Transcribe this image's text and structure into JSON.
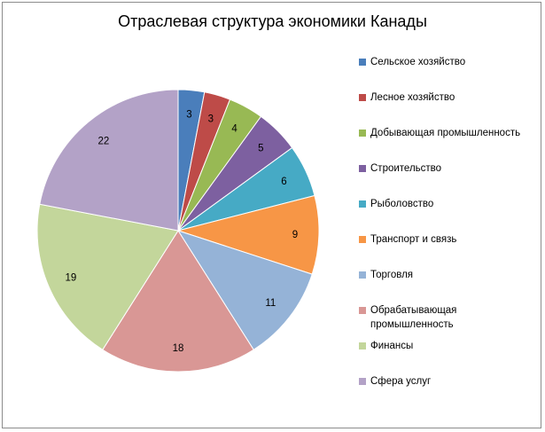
{
  "chart_data": {
    "type": "pie",
    "title": "Отраслевая структура экономики Канады",
    "categories": [
      "Сельское хозяйство",
      "Лесное хозяйство",
      "Добывающая промышленность",
      "Строительство",
      "Рыболовство",
      "Транспорт и связь",
      "Торговля",
      "Обрабатывающая промышленность",
      "Финансы",
      "Сфера услуг"
    ],
    "values": [
      3,
      3,
      4,
      5,
      6,
      9,
      11,
      18,
      19,
      22
    ],
    "colors": [
      "#4a7ebb",
      "#be4b48",
      "#98b954",
      "#7d60a0",
      "#46aac5",
      "#f79646",
      "#95b3d7",
      "#d99795",
      "#c3d69b",
      "#b3a2c7"
    ],
    "data_labels": true,
    "legend_position": "right"
  }
}
